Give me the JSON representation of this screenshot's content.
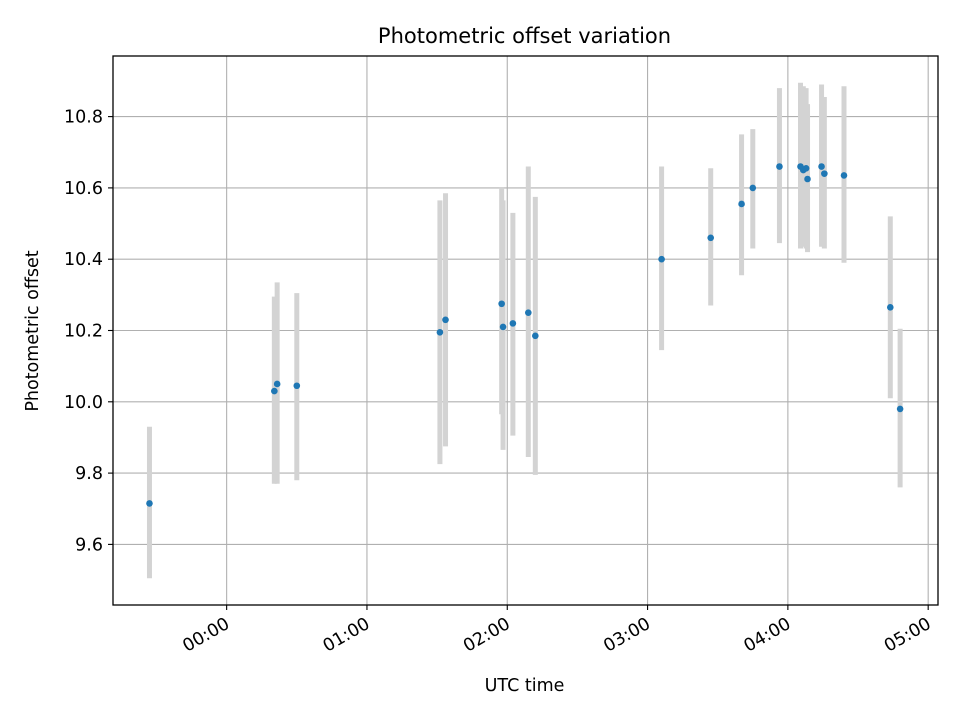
{
  "chart_data": {
    "type": "scatter",
    "title": "Photometric offset variation",
    "xlabel": "UTC time",
    "ylabel": "Photometric offset",
    "x_unit": "hours UTC",
    "xlim": [
      -0.81,
      5.07
    ],
    "ylim": [
      9.43,
      10.97
    ],
    "x_ticks": [
      {
        "value": 0,
        "label": "00:00"
      },
      {
        "value": 1,
        "label": "01:00"
      },
      {
        "value": 2,
        "label": "02:00"
      },
      {
        "value": 3,
        "label": "03:00"
      },
      {
        "value": 4,
        "label": "04:00"
      },
      {
        "value": 5,
        "label": "05:00"
      }
    ],
    "y_ticks": [
      {
        "value": 9.6,
        "label": "9.6"
      },
      {
        "value": 9.8,
        "label": "9.8"
      },
      {
        "value": 10.0,
        "label": "10.0"
      },
      {
        "value": 10.2,
        "label": "10.2"
      },
      {
        "value": 10.4,
        "label": "10.4"
      },
      {
        "value": 10.6,
        "label": "10.6"
      },
      {
        "value": 10.8,
        "label": "10.8"
      }
    ],
    "grid": true,
    "point_color": "#1f77b4",
    "errorbar_color": "#d3d3d3",
    "points": [
      {
        "x": -0.55,
        "y": 9.715,
        "ylow": 9.505,
        "yhigh": 9.93
      },
      {
        "x": 0.34,
        "y": 10.03,
        "ylow": 9.77,
        "yhigh": 10.295
      },
      {
        "x": 0.36,
        "y": 10.05,
        "ylow": 9.77,
        "yhigh": 10.335
      },
      {
        "x": 0.5,
        "y": 10.045,
        "ylow": 9.78,
        "yhigh": 10.305
      },
      {
        "x": 1.52,
        "y": 10.195,
        "ylow": 9.825,
        "yhigh": 10.565
      },
      {
        "x": 1.56,
        "y": 10.23,
        "ylow": 9.875,
        "yhigh": 10.585
      },
      {
        "x": 1.96,
        "y": 10.275,
        "ylow": 9.965,
        "yhigh": 10.6
      },
      {
        "x": 1.97,
        "y": 10.21,
        "ylow": 9.865,
        "yhigh": 10.565
      },
      {
        "x": 2.04,
        "y": 10.22,
        "ylow": 9.905,
        "yhigh": 10.53
      },
      {
        "x": 2.15,
        "y": 10.25,
        "ylow": 9.845,
        "yhigh": 10.66
      },
      {
        "x": 2.2,
        "y": 10.185,
        "ylow": 9.795,
        "yhigh": 10.575
      },
      {
        "x": 3.1,
        "y": 10.4,
        "ylow": 10.145,
        "yhigh": 10.66
      },
      {
        "x": 3.45,
        "y": 10.46,
        "ylow": 10.27,
        "yhigh": 10.655
      },
      {
        "x": 3.67,
        "y": 10.555,
        "ylow": 10.355,
        "yhigh": 10.75
      },
      {
        "x": 3.75,
        "y": 10.6,
        "ylow": 10.43,
        "yhigh": 10.765
      },
      {
        "x": 3.94,
        "y": 10.66,
        "ylow": 10.445,
        "yhigh": 10.88
      },
      {
        "x": 4.09,
        "y": 10.66,
        "ylow": 10.43,
        "yhigh": 10.895
      },
      {
        "x": 4.11,
        "y": 10.65,
        "ylow": 10.435,
        "yhigh": 10.885
      },
      {
        "x": 4.13,
        "y": 10.655,
        "ylow": 10.43,
        "yhigh": 10.88
      },
      {
        "x": 4.14,
        "y": 10.625,
        "ylow": 10.42,
        "yhigh": 10.835
      },
      {
        "x": 4.24,
        "y": 10.66,
        "ylow": 10.435,
        "yhigh": 10.89
      },
      {
        "x": 4.26,
        "y": 10.64,
        "ylow": 10.43,
        "yhigh": 10.855
      },
      {
        "x": 4.4,
        "y": 10.635,
        "ylow": 10.39,
        "yhigh": 10.885
      },
      {
        "x": 4.73,
        "y": 10.265,
        "ylow": 10.01,
        "yhigh": 10.52
      },
      {
        "x": 4.8,
        "y": 9.98,
        "ylow": 9.76,
        "yhigh": 10.205
      }
    ]
  }
}
